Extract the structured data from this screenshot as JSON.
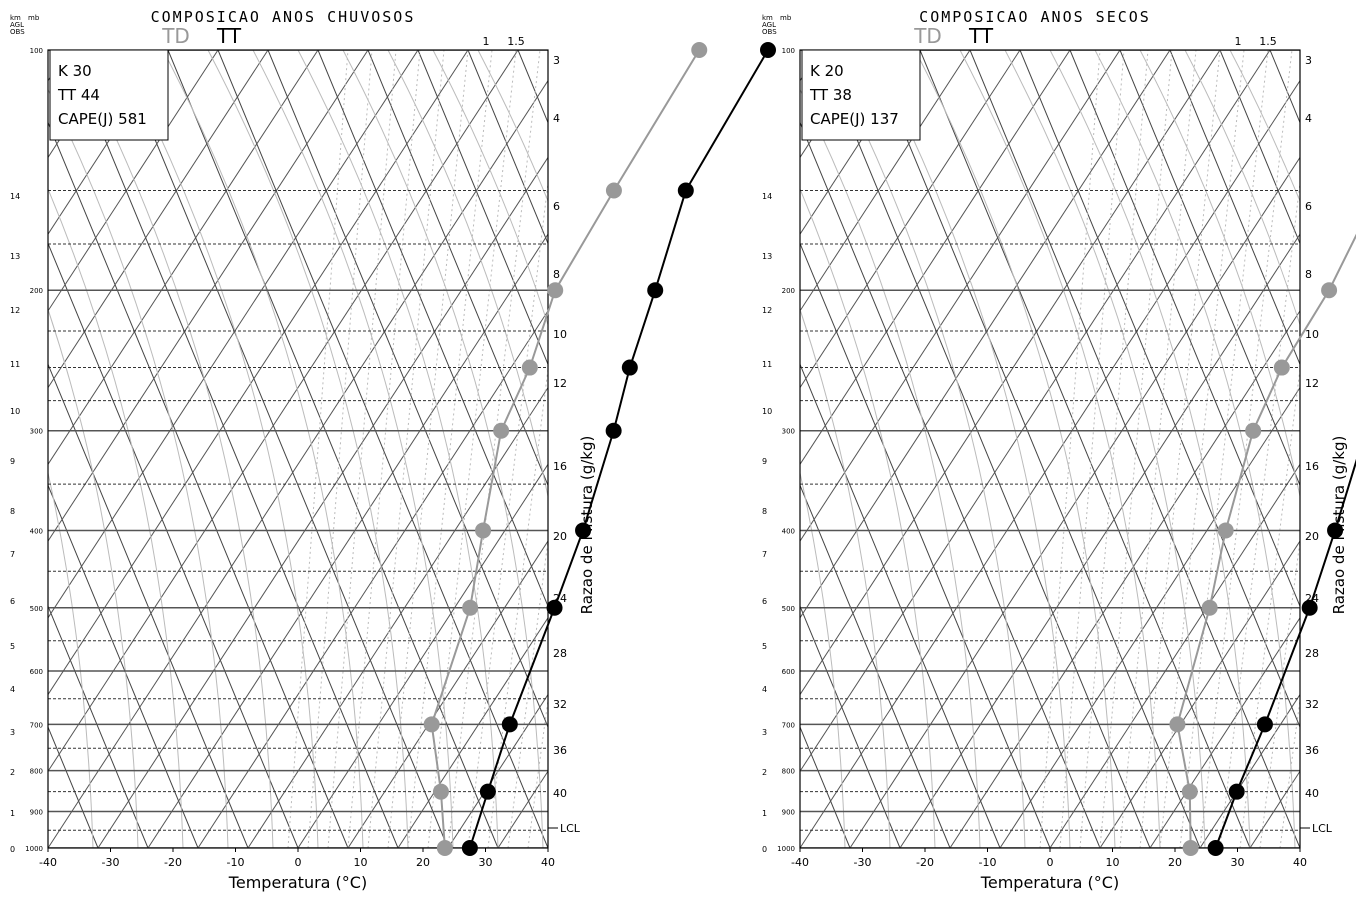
{
  "chart_data": [
    {
      "type": "skew-t",
      "title": "COMPOSICAO ANOS CHUVOSOS",
      "xlabel": "Temperatura (°C)",
      "right_label": "Razao de Mistura (g/kg)",
      "xticks": [
        -40,
        -30,
        -20,
        -10,
        0,
        10,
        20,
        30,
        40
      ],
      "xlim": [
        -40,
        40
      ],
      "pressure_levels": [
        100,
        200,
        300,
        400,
        500,
        600,
        700,
        800,
        900,
        1000
      ],
      "height_km_labels": [
        "14",
        "13",
        "12",
        "11",
        "10",
        "9",
        "8",
        "7",
        "6",
        "5",
        "4",
        "3",
        "2",
        "1",
        "0"
      ],
      "mixing_ratio_labels": [
        "3",
        "4",
        "6",
        "8",
        "10",
        "12",
        "16",
        "20",
        "24",
        "28",
        "32",
        "36",
        "40"
      ],
      "top_mixing_labels": [
        "1",
        "1.5"
      ],
      "corner_units": [
        "km",
        "mb",
        "AGL",
        "OBS"
      ],
      "lcl_label": "LCL",
      "legend": {
        "td": "TD",
        "tt": "TT"
      },
      "info": [
        "K  30",
        "TT 44",
        "CAPE(J) 581"
      ],
      "tt": [
        [
          100,
          -8
        ],
        [
          150,
          -6.5
        ],
        [
          200,
          -1
        ],
        [
          250,
          3
        ],
        [
          300,
          7
        ],
        [
          400,
          12.5
        ],
        [
          500,
          16
        ],
        [
          700,
          21
        ],
        [
          850,
          24.5
        ],
        [
          1000,
          27.5
        ]
      ],
      "td": [
        [
          100,
          -19
        ],
        [
          150,
          -18
        ],
        [
          200,
          -17
        ],
        [
          250,
          -13
        ],
        [
          300,
          -11
        ],
        [
          400,
          -3.5
        ],
        [
          500,
          2.5
        ],
        [
          700,
          8.5
        ],
        [
          850,
          17
        ],
        [
          1000,
          23.5
        ]
      ]
    },
    {
      "type": "skew-t",
      "title": "COMPOSICAO ANOS SECOS",
      "xlabel": "Temperatura (°C)",
      "right_label": "Razao de Mistura (g/kg)",
      "xticks": [
        -40,
        -30,
        -20,
        -10,
        0,
        10,
        20,
        30,
        40
      ],
      "xlim": [
        -40,
        40
      ],
      "pressure_levels": [
        100,
        200,
        300,
        400,
        500,
        600,
        700,
        800,
        900,
        1000
      ],
      "height_km_labels": [
        "14",
        "13",
        "12",
        "11",
        "10",
        "9",
        "8",
        "7",
        "6",
        "5",
        "4",
        "3",
        "2",
        "1",
        "0"
      ],
      "mixing_ratio_labels": [
        "3",
        "4",
        "6",
        "8",
        "10",
        "12",
        "16",
        "20",
        "24",
        "28",
        "32",
        "36",
        "40"
      ],
      "top_mixing_labels": [
        "1",
        "1.5"
      ],
      "corner_units": [
        "km",
        "mb",
        "AGL",
        "OBS"
      ],
      "lcl_label": "LCL",
      "legend": {
        "td": "TD",
        "tt": "TT"
      },
      "info": [
        "K  20",
        "TT 38",
        "CAPE(J) 137"
      ],
      "tt": [
        [
          100,
          -9
        ],
        [
          150,
          -7
        ],
        [
          200,
          -1
        ],
        [
          250,
          3.5
        ],
        [
          300,
          7
        ],
        [
          400,
          12.5
        ],
        [
          500,
          16.5
        ],
        [
          700,
          21.5
        ],
        [
          850,
          24
        ],
        [
          1000,
          26.5
        ]
      ],
      "td": [
        [
          100,
          -21
        ],
        [
          150,
          -16
        ],
        [
          200,
          -13.5
        ],
        [
          250,
          -13
        ],
        [
          300,
          -11
        ],
        [
          400,
          -5
        ],
        [
          500,
          0.5
        ],
        [
          700,
          7.5
        ],
        [
          850,
          16.5
        ],
        [
          1000,
          22.5
        ]
      ]
    }
  ]
}
